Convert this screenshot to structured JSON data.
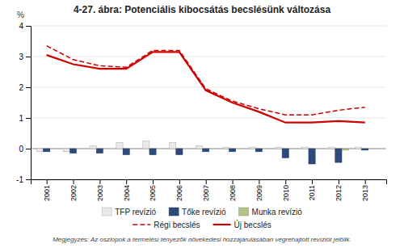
{
  "chart_data": {
    "type": "bar",
    "title": "4-27. ábra: Potenciális kibocsátás becslésünk változása",
    "footnote": "Megjegyzés: Az oszlopok a termelési tényezők növekedési hozzájárulásában végrehajtott revíziót jelölik.",
    "ylabel": "%",
    "x": [
      2001,
      2002,
      2003,
      2004,
      2005,
      2006,
      2007,
      2008,
      2009,
      2010,
      2011,
      2012,
      2013
    ],
    "xlim": [
      2000.4,
      2013.8
    ],
    "xticks": [
      2001,
      2002,
      2003,
      2004,
      2005,
      2006,
      2007,
      2008,
      2009,
      2010,
      2011,
      2012,
      2013
    ],
    "ylim": [
      -1,
      4
    ],
    "yticks": [
      -1,
      0,
      1,
      2,
      3,
      4
    ],
    "grid": true,
    "legend": "bottom",
    "series": [
      {
        "name": "TFP revízió",
        "type": "bar",
        "color": "#e8e8e8",
        "values": [
          -0.1,
          -0.1,
          0.1,
          0.2,
          0.25,
          0.2,
          0.1,
          0.05,
          0.05,
          0.05,
          0.05,
          0.05,
          0.05
        ]
      },
      {
        "name": "Tőke revízió",
        "type": "bar",
        "color": "#2e4a7a",
        "values": [
          -0.1,
          -0.15,
          -0.15,
          -0.2,
          -0.2,
          -0.2,
          -0.1,
          -0.1,
          -0.1,
          -0.3,
          -0.5,
          -0.45,
          -0.05
        ]
      },
      {
        "name": "Munka revízió",
        "type": "bar",
        "color": "#b5c48a",
        "values": [
          0.0,
          0.0,
          0.0,
          0.0,
          0.0,
          0.0,
          0.0,
          0.0,
          0.0,
          0.0,
          0.0,
          -0.05,
          0.0
        ]
      },
      {
        "name": "Régi becslés",
        "type": "line",
        "color": "#cc0000",
        "line_style": "dashed",
        "values": [
          3.35,
          2.9,
          2.7,
          2.65,
          3.2,
          3.2,
          1.95,
          1.55,
          1.3,
          1.1,
          1.1,
          1.25,
          1.35
        ]
      },
      {
        "name": "Új becslés",
        "type": "line",
        "color": "#cc0000",
        "line_style": "solid",
        "values": [
          3.05,
          2.75,
          2.6,
          2.6,
          3.15,
          3.15,
          1.9,
          1.5,
          1.2,
          0.85,
          0.85,
          0.9,
          0.85
        ]
      }
    ]
  }
}
